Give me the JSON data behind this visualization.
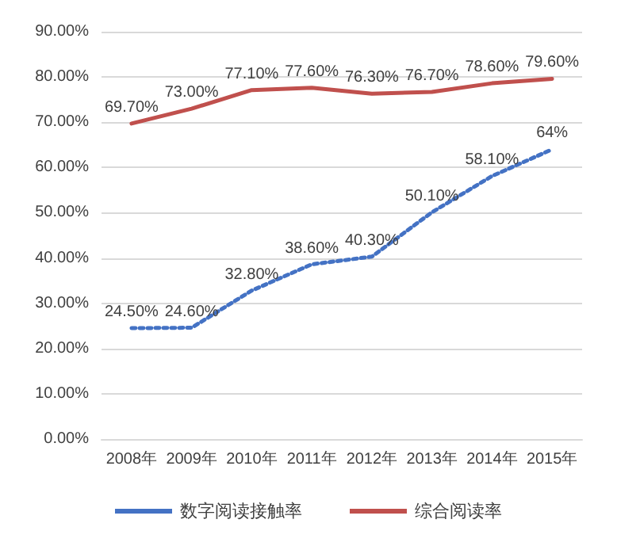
{
  "chart_data": {
    "type": "line",
    "categories": [
      "2008年",
      "2009年",
      "2010年",
      "2011年",
      "2012年",
      "2013年",
      "2014年",
      "2015年"
    ],
    "series": [
      {
        "name": "数字阅读接触率",
        "color": "#4472c4",
        "line_style": "dotted",
        "values": [
          24.5,
          24.6,
          32.8,
          38.6,
          40.3,
          50.1,
          58.1,
          64
        ],
        "value_labels": [
          "24.50%",
          "24.60%",
          "32.80%",
          "38.60%",
          "40.30%",
          "50.10%",
          "58.10%",
          "64%"
        ]
      },
      {
        "name": "综合阅读率",
        "color": "#c0504d",
        "line_style": "solid",
        "values": [
          69.7,
          73,
          77.1,
          77.6,
          76.3,
          76.7,
          78.6,
          79.6
        ],
        "value_labels": [
          "69.70%",
          "73.00%",
          "77.10%",
          "77.60%",
          "76.30%",
          "76.70%",
          "78.60%",
          "79.60%"
        ]
      }
    ],
    "ylim": [
      0,
      90
    ],
    "yticks": [
      {
        "value": 0,
        "label": "0.00%"
      },
      {
        "value": 10,
        "label": "10.00%"
      },
      {
        "value": 20,
        "label": "20.00%"
      },
      {
        "value": 30,
        "label": "30.00%"
      },
      {
        "value": 40,
        "label": "40.00%"
      },
      {
        "value": 50,
        "label": "50.00%"
      },
      {
        "value": 60,
        "label": "60.00%"
      },
      {
        "value": 70,
        "label": "70.00%"
      },
      {
        "value": 80,
        "label": "80.00%"
      },
      {
        "value": 90,
        "label": "90.00%"
      }
    ],
    "grid": "y",
    "legend": "bottom",
    "marker": "none"
  }
}
